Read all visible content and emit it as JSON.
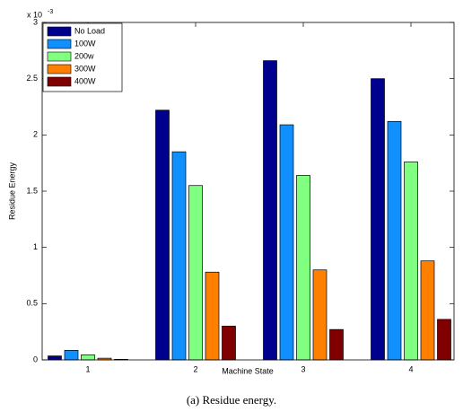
{
  "chart_data": {
    "type": "bar",
    "xlabel": "Machine State",
    "ylabel": "Residue Energy",
    "y_scale_label": {
      "base": "x 10",
      "exponent": "-3"
    },
    "caption": "(a)  Residue energy.",
    "categories": [
      "1",
      "2",
      "3",
      "4"
    ],
    "series": [
      {
        "name": "No Load",
        "color": "#00008f",
        "values": [
          0.035,
          2.22,
          2.66,
          2.5
        ]
      },
      {
        "name": "100W",
        "color": "#1090ff",
        "values": [
          0.085,
          1.85,
          2.09,
          2.12
        ]
      },
      {
        "name": "200w",
        "color": "#80ff80",
        "values": [
          0.045,
          1.55,
          1.64,
          1.76
        ]
      },
      {
        "name": "300W",
        "color": "#ff8000",
        "values": [
          0.015,
          0.78,
          0.8,
          0.88
        ]
      },
      {
        "name": "400W",
        "color": "#800000",
        "values": [
          0.005,
          0.3,
          0.27,
          0.36
        ]
      }
    ],
    "ylim": [
      0,
      3
    ],
    "yticks": [
      0,
      0.5,
      1,
      1.5,
      2,
      2.5,
      3
    ],
    "legend": "upper-left"
  }
}
